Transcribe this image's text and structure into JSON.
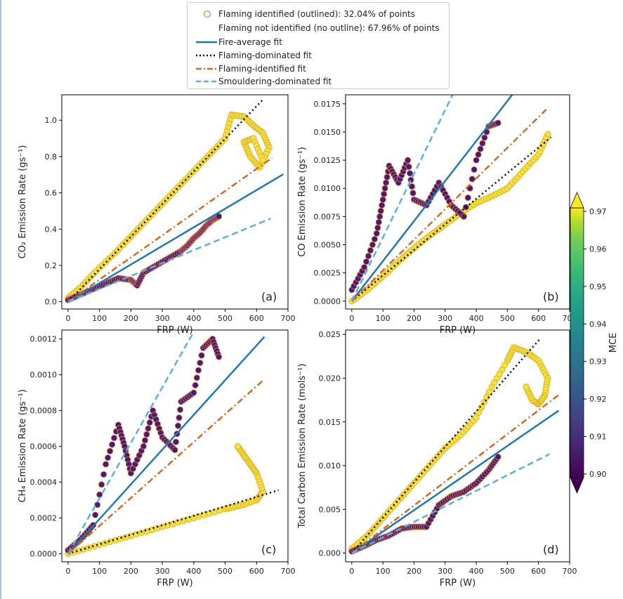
{
  "legend": {
    "items": [
      {
        "label": "Flaming identified (outlined): 32.04% of points",
        "kind": "marker",
        "color": "#e8804a"
      },
      {
        "label": "Flaming not identified (no outline): 67.96% of points",
        "kind": "none",
        "color": "#ffffff"
      },
      {
        "label": "Fire-average fit",
        "kind": "solid",
        "color": "#1f77b4"
      },
      {
        "label": "Flaming-dominated fit",
        "kind": "dotted",
        "color": "#000000"
      },
      {
        "label": "Flaming-identified fit",
        "kind": "dashdot",
        "color": "#d2691e"
      },
      {
        "label": "Smouldering-dominated fit",
        "kind": "dashed",
        "color": "#5aaee0"
      }
    ]
  },
  "colorbar": {
    "label": "MCE",
    "min": 0.9,
    "max": 0.97,
    "ticks": [
      "0.90",
      "0.91",
      "0.92",
      "0.93",
      "0.94",
      "0.95",
      "0.96",
      "0.97"
    ]
  },
  "chart_data": [
    {
      "panel": "(a)",
      "type": "scatter",
      "xlabel": "FRP (W)",
      "ylabel": "CO₂ Emission Rate (gs⁻¹)",
      "xlim": [
        -20,
        700
      ],
      "ylim": [
        -0.04,
        1.14
      ],
      "xticks": [
        "0",
        "100",
        "200",
        "300",
        "400",
        "500",
        "600",
        "700"
      ],
      "yticks": [
        "0.0",
        "0.2",
        "0.4",
        "0.6",
        "0.8",
        "1.0"
      ],
      "fits": {
        "fire_average": 0.001025,
        "flaming_dominated": 0.001795,
        "flaming_identified": 0.00122,
        "smouldering_dominated": 0.00071
      },
      "fit_xmax": {
        "fire_average": 685,
        "flaming_dominated": 620,
        "flaming_identified": 650,
        "smouldering_dominated": 645
      },
      "groups": [
        {
          "name": "flaming",
          "x": [
            0,
            40,
            90,
            150,
            200,
            250,
            300,
            350,
            400,
            450,
            500,
            520,
            560,
            590,
            620,
            640,
            610,
            580,
            560,
            590,
            620
          ],
          "y": [
            0.02,
            0.08,
            0.17,
            0.27,
            0.36,
            0.45,
            0.54,
            0.63,
            0.72,
            0.81,
            0.9,
            1.03,
            1.02,
            0.97,
            0.93,
            0.85,
            0.74,
            0.8,
            0.88,
            0.9,
            0.78
          ]
        },
        {
          "name": "smouldering",
          "x": [
            0,
            40,
            80,
            120,
            160,
            200,
            220,
            240,
            280,
            320,
            360,
            380,
            400,
            420,
            440,
            460,
            480
          ],
          "y": [
            0.01,
            0.04,
            0.07,
            0.1,
            0.13,
            0.12,
            0.09,
            0.16,
            0.2,
            0.24,
            0.28,
            0.31,
            0.35,
            0.38,
            0.42,
            0.45,
            0.47
          ]
        }
      ]
    },
    {
      "panel": "(b)",
      "type": "scatter",
      "xlabel": "FRP (W)",
      "ylabel": "CO Emission Rate (gs⁻¹)",
      "xlim": [
        -20,
        700
      ],
      "ylim": [
        -0.0007,
        0.0183
      ],
      "xticks": [
        "0",
        "100",
        "200",
        "300",
        "400",
        "500",
        "600",
        "700"
      ],
      "yticks": [
        "0.0000",
        "0.0025",
        "0.0050",
        "0.0075",
        "0.0100",
        "0.0125",
        "0.0150",
        "0.0175"
      ],
      "fits": {
        "fire_average": 3.55e-05,
        "flaming_dominated": 2.27e-05,
        "flaming_identified": 2.72e-05,
        "smouldering_dominated": 5.65e-05
      },
      "fit_xmax": {
        "fire_average": 530,
        "flaming_dominated": 640,
        "flaming_identified": 625,
        "smouldering_dominated": 330
      },
      "groups": [
        {
          "name": "flaming",
          "x": [
            0,
            50,
            100,
            150,
            200,
            250,
            300,
            350,
            400,
            450,
            500,
            550,
            600,
            630
          ],
          "y": [
            0.0,
            0.001,
            0.0022,
            0.0035,
            0.0047,
            0.0058,
            0.0068,
            0.0078,
            0.0087,
            0.0093,
            0.01,
            0.0115,
            0.013,
            0.0148
          ]
        },
        {
          "name": "smouldering",
          "x": [
            0,
            40,
            80,
            100,
            120,
            150,
            180,
            200,
            240,
            280,
            320,
            360,
            400,
            440,
            470
          ],
          "y": [
            0.001,
            0.003,
            0.006,
            0.009,
            0.012,
            0.0105,
            0.0125,
            0.009,
            0.0085,
            0.0105,
            0.0085,
            0.0075,
            0.0125,
            0.0155,
            0.0158
          ]
        }
      ]
    },
    {
      "panel": "(c)",
      "type": "scatter",
      "xlabel": "FRP (W)",
      "ylabel": "CH₄ Emission Rate (gs⁻¹)",
      "xlim": [
        -20,
        700
      ],
      "ylim": [
        -4.5e-05,
        0.00125
      ],
      "xticks": [
        "0",
        "100",
        "200",
        "300",
        "400",
        "500",
        "600",
        "700"
      ],
      "yticks": [
        "0.0000",
        "0.0002",
        "0.0004",
        "0.0006",
        "0.0008",
        "0.0010",
        "0.0012"
      ],
      "fits": {
        "fire_average": 1.94e-06,
        "flaming_dominated": 5.3e-07,
        "flaming_identified": 1.56e-06,
        "smouldering_dominated": 3.1e-06
      },
      "fit_xmax": {
        "fire_average": 625,
        "flaming_dominated": 670,
        "flaming_identified": 625,
        "smouldering_dominated": 395
      },
      "groups": [
        {
          "name": "flaming",
          "x": [
            0,
            100,
            200,
            300,
            400,
            500,
            550,
            600,
            620,
            600,
            580,
            560,
            540
          ],
          "y": [
            0.0,
            5e-05,
            0.0001,
            0.00015,
            0.0002,
            0.00025,
            0.00027,
            0.0003,
            0.00035,
            0.00045,
            0.0005,
            0.00055,
            0.0006
          ]
        },
        {
          "name": "smouldering",
          "x": [
            0,
            40,
            80,
            120,
            160,
            180,
            200,
            240,
            270,
            300,
            340,
            360,
            400,
            430,
            460,
            480
          ],
          "y": [
            2e-05,
            8e-05,
            0.00016,
            0.0005,
            0.00072,
            0.0006,
            0.00045,
            0.0006,
            0.0008,
            0.00065,
            0.00058,
            0.00085,
            0.0009,
            0.00115,
            0.0012,
            0.0011
          ]
        }
      ]
    },
    {
      "panel": "(d)",
      "type": "scatter",
      "xlabel": "FRP (W)",
      "ylabel": "Total Carbon Emission Rate (mols⁻¹)",
      "xlim": [
        -20,
        700
      ],
      "ylim": [
        -0.001,
        0.0255
      ],
      "xticks": [
        "0",
        "100",
        "200",
        "300",
        "400",
        "500",
        "600",
        "700"
      ],
      "yticks": [
        "0.000",
        "0.005",
        "0.010",
        "0.015",
        "0.020",
        "0.025"
      ],
      "fits": {
        "fire_average": 2.45e-05,
        "flaming_dominated": 4.05e-05,
        "flaming_identified": 2.72e-05,
        "smouldering_dominated": 1.78e-05
      },
      "fit_xmax": {
        "fire_average": 665,
        "flaming_dominated": 605,
        "flaming_identified": 665,
        "smouldering_dominated": 635
      },
      "groups": [
        {
          "name": "flaming",
          "x": [
            0,
            50,
            100,
            150,
            200,
            250,
            300,
            350,
            400,
            450,
            500,
            520,
            560,
            600,
            630,
            620,
            600,
            580,
            560
          ],
          "y": [
            0.0005,
            0.002,
            0.004,
            0.006,
            0.008,
            0.01,
            0.012,
            0.0135,
            0.0155,
            0.019,
            0.022,
            0.0235,
            0.023,
            0.022,
            0.02,
            0.018,
            0.017,
            0.0175,
            0.019
          ]
        },
        {
          "name": "smouldering",
          "x": [
            0,
            40,
            80,
            120,
            160,
            200,
            240,
            280,
            320,
            360,
            400,
            440,
            470
          ],
          "y": [
            0.0002,
            0.0008,
            0.0015,
            0.002,
            0.0028,
            0.003,
            0.003,
            0.0055,
            0.0065,
            0.007,
            0.008,
            0.0095,
            0.011
          ]
        }
      ]
    }
  ]
}
